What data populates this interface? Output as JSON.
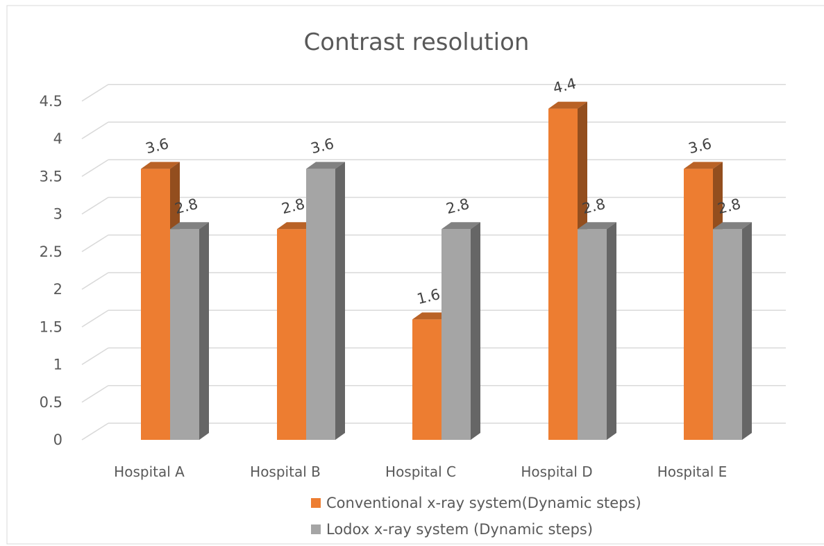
{
  "chart_data": {
    "type": "bar",
    "title": "Contrast resolution",
    "categories": [
      "Hospital A",
      "Hospital B",
      "Hospital C",
      "Hospital D",
      "Hospital E"
    ],
    "series": [
      {
        "name": "Conventional  x-ray system(Dynamic steps)",
        "values": [
          3.6,
          2.8,
          1.6,
          4.4,
          3.6
        ],
        "color": "#ED7D31"
      },
      {
        "name": "Lodox x-ray system (Dynamic steps)",
        "values": [
          2.8,
          3.6,
          2.8,
          2.8,
          2.8
        ],
        "color": "#A5A5A5"
      }
    ],
    "ylim": [
      0,
      4.5
    ],
    "ytick_labels": [
      "0",
      "0.5",
      "1",
      "1.5",
      "2",
      "2.5",
      "3",
      "3.5",
      "4",
      "4.5"
    ],
    "data_labels": [
      [
        "3.6",
        "2.8",
        "1.6",
        "4.4",
        "3.6"
      ],
      [
        "2.8",
        "3.6",
        "2.8",
        "2.8",
        "2.8"
      ]
    ],
    "gridlines": true,
    "legend_position": "bottom",
    "style": "3d-clustered-column"
  }
}
